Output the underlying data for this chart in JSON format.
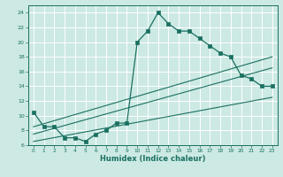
{
  "xlabel": "Humidex (Indice chaleur)",
  "ylabel": "",
  "bg_color": "#cce9e4",
  "grid_color": "#b0d8d0",
  "line_color": "#1a7060",
  "marker_color": "#1a7060",
  "xlim": [
    -0.5,
    23.5
  ],
  "ylim": [
    6,
    25
  ],
  "xticks": [
    0,
    1,
    2,
    3,
    4,
    5,
    6,
    7,
    8,
    9,
    10,
    11,
    12,
    13,
    14,
    15,
    16,
    17,
    18,
    19,
    20,
    21,
    22,
    23
  ],
  "yticks": [
    6,
    8,
    10,
    12,
    14,
    16,
    18,
    20,
    22,
    24
  ],
  "main_line_x": [
    0,
    1,
    2,
    3,
    4,
    5,
    6,
    7,
    8,
    9,
    10,
    11,
    12,
    13,
    14,
    15,
    16,
    17,
    18,
    19,
    20,
    21,
    22,
    23
  ],
  "main_line_y": [
    10.5,
    8.5,
    8.5,
    7.0,
    7.0,
    6.5,
    7.5,
    8.0,
    9.0,
    9.0,
    20.0,
    21.5,
    24.0,
    22.5,
    21.5,
    21.5,
    20.5,
    19.5,
    18.5,
    18.0,
    15.5,
    15.0,
    14.0,
    14.0
  ],
  "diag_line1_x": [
    0,
    23
  ],
  "diag_line1_y": [
    8.5,
    18.0
  ],
  "diag_line2_x": [
    0,
    23
  ],
  "diag_line2_y": [
    7.5,
    16.5
  ],
  "diag_line3_x": [
    0,
    23
  ],
  "diag_line3_y": [
    6.5,
    12.5
  ]
}
